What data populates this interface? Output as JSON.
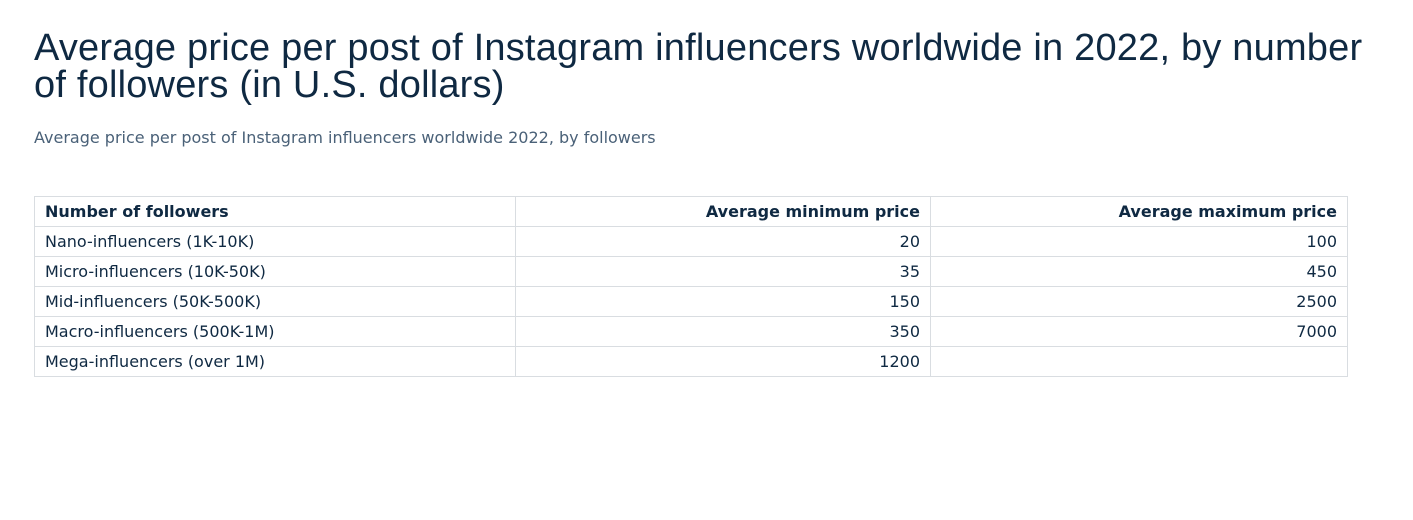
{
  "title": "Average price per post of Instagram influencers worldwide in 2022, by number of followers (in U.S. dollars)",
  "subtitle": "Average price per post of Instagram influencers worldwide 2022, by followers",
  "chart_data": {
    "type": "table",
    "columns": [
      "Number of followers",
      "Average minimum price",
      "Average maximum price"
    ],
    "rows": [
      [
        "Nano-influencers (1K-10K)",
        "20",
        "100"
      ],
      [
        "Micro-influencers (10K-50K)",
        "35",
        "450"
      ],
      [
        "Mid-influencers (50K-500K)",
        "150",
        "2500"
      ],
      [
        "Macro-influencers (500K-1M)",
        "350",
        "7000"
      ],
      [
        "Mega-influencers (over 1M)",
        "1200",
        ""
      ]
    ]
  }
}
